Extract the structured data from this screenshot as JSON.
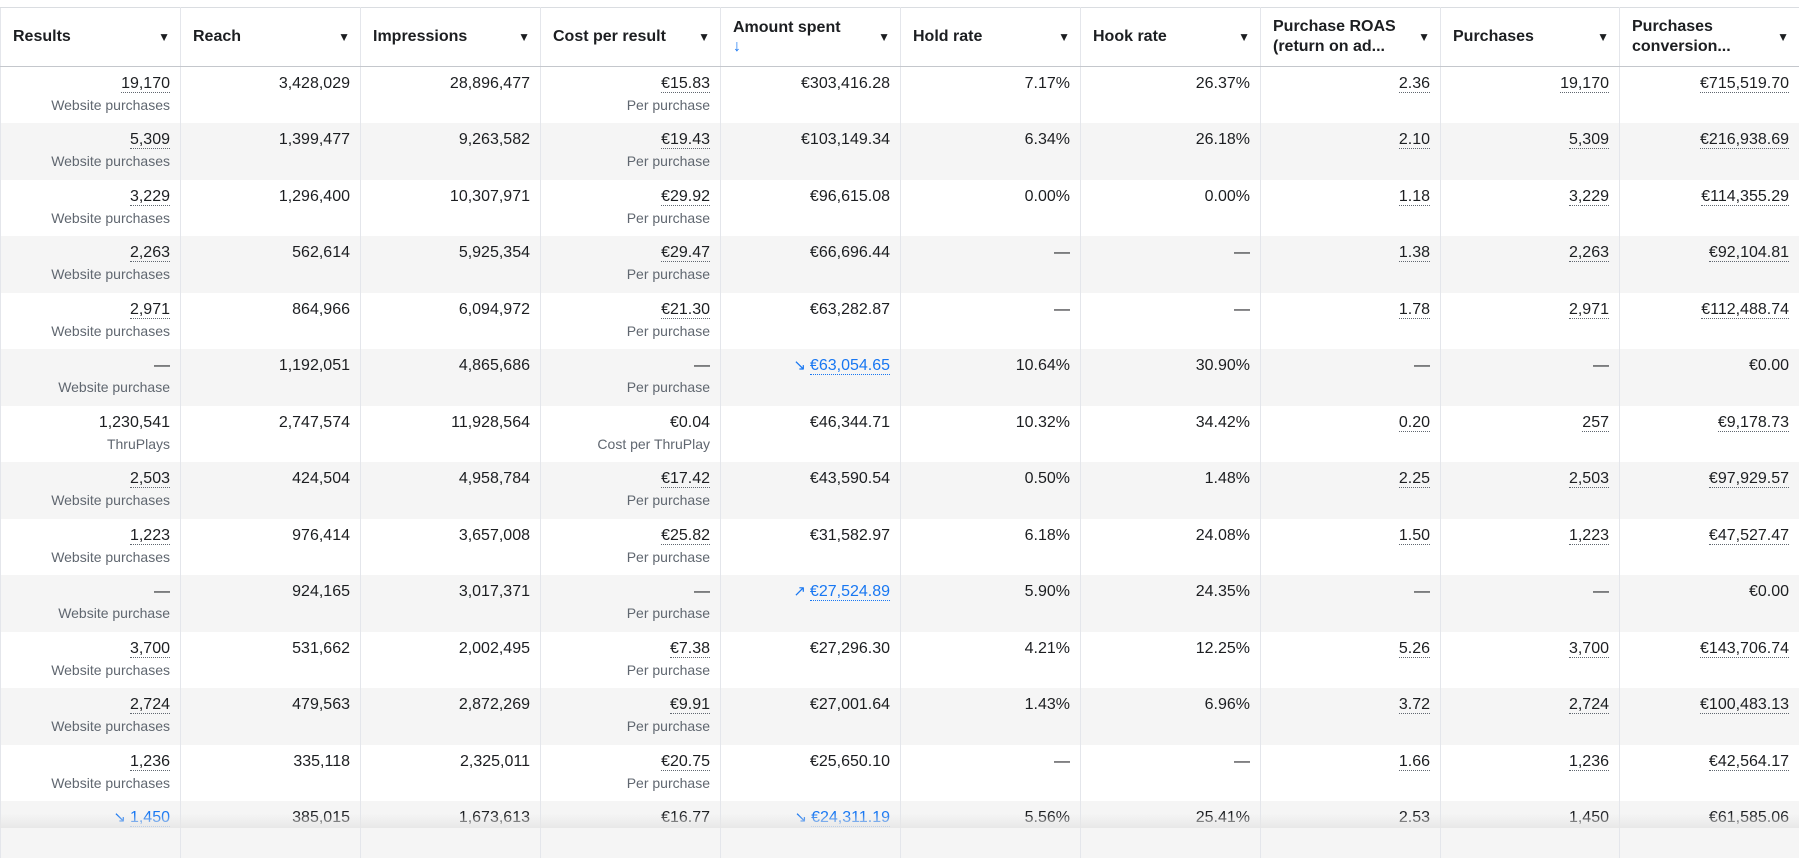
{
  "columns": [
    {
      "label": "Results",
      "sorted": ""
    },
    {
      "label": "Reach",
      "sorted": ""
    },
    {
      "label": "Impressions",
      "sorted": ""
    },
    {
      "label": "Cost per result",
      "sorted": ""
    },
    {
      "label": "Amount spent",
      "sorted": "↓"
    },
    {
      "label": "Hold rate",
      "sorted": ""
    },
    {
      "label": "Hook rate",
      "sorted": ""
    },
    {
      "label": "Purchase ROAS (return on ad...",
      "sorted": ""
    },
    {
      "label": "Purchases",
      "sorted": ""
    },
    {
      "label": "Purchases conversion...",
      "sorted": ""
    }
  ],
  "rows": [
    {
      "results": {
        "value": "19,170",
        "sub": "Website purchases",
        "dotted": true,
        "trend": ""
      },
      "reach": "3,428,029",
      "impressions": "28,896,477",
      "cpr": {
        "value": "€15.83",
        "sub": "Per purchase",
        "dotted": true
      },
      "spent": {
        "value": "€303,416.28",
        "trend": ""
      },
      "hold": "7.17%",
      "hook": "26.37%",
      "roas": {
        "value": "2.36",
        "dotted": true
      },
      "purchases": {
        "value": "19,170",
        "dotted": true
      },
      "conv": {
        "value": "€715,519.70",
        "dotted": true
      }
    },
    {
      "results": {
        "value": "5,309",
        "sub": "Website purchases",
        "dotted": true,
        "trend": ""
      },
      "reach": "1,399,477",
      "impressions": "9,263,582",
      "cpr": {
        "value": "€19.43",
        "sub": "Per purchase",
        "dotted": true
      },
      "spent": {
        "value": "€103,149.34",
        "trend": ""
      },
      "hold": "6.34%",
      "hook": "26.18%",
      "roas": {
        "value": "2.10",
        "dotted": true
      },
      "purchases": {
        "value": "5,309",
        "dotted": true
      },
      "conv": {
        "value": "€216,938.69",
        "dotted": true
      }
    },
    {
      "results": {
        "value": "3,229",
        "sub": "Website purchases",
        "dotted": true,
        "trend": ""
      },
      "reach": "1,296,400",
      "impressions": "10,307,971",
      "cpr": {
        "value": "€29.92",
        "sub": "Per purchase",
        "dotted": true
      },
      "spent": {
        "value": "€96,615.08",
        "trend": ""
      },
      "hold": "0.00%",
      "hook": "0.00%",
      "roas": {
        "value": "1.18",
        "dotted": true
      },
      "purchases": {
        "value": "3,229",
        "dotted": true
      },
      "conv": {
        "value": "€114,355.29",
        "dotted": true
      }
    },
    {
      "results": {
        "value": "2,263",
        "sub": "Website purchases",
        "dotted": true,
        "trend": ""
      },
      "reach": "562,614",
      "impressions": "5,925,354",
      "cpr": {
        "value": "€29.47",
        "sub": "Per purchase",
        "dotted": true
      },
      "spent": {
        "value": "€66,696.44",
        "trend": ""
      },
      "hold": "—",
      "hook": "—",
      "roas": {
        "value": "1.38",
        "dotted": true
      },
      "purchases": {
        "value": "2,263",
        "dotted": true
      },
      "conv": {
        "value": "€92,104.81",
        "dotted": true
      }
    },
    {
      "results": {
        "value": "2,971",
        "sub": "Website purchases",
        "dotted": true,
        "trend": ""
      },
      "reach": "864,966",
      "impressions": "6,094,972",
      "cpr": {
        "value": "€21.30",
        "sub": "Per purchase",
        "dotted": true
      },
      "spent": {
        "value": "€63,282.87",
        "trend": ""
      },
      "hold": "—",
      "hook": "—",
      "roas": {
        "value": "1.78",
        "dotted": true
      },
      "purchases": {
        "value": "2,971",
        "dotted": true
      },
      "conv": {
        "value": "€112,488.74",
        "dotted": true
      }
    },
    {
      "results": {
        "value": "—",
        "sub": "Website purchase",
        "dotted": false,
        "trend": ""
      },
      "reach": "1,192,051",
      "impressions": "4,865,686",
      "cpr": {
        "value": "—",
        "sub": "Per purchase",
        "dotted": false
      },
      "spent": {
        "value": "€63,054.65",
        "trend": "↘"
      },
      "hold": "10.64%",
      "hook": "30.90%",
      "roas": {
        "value": "—",
        "dotted": false
      },
      "purchases": {
        "value": "—",
        "dotted": false
      },
      "conv": {
        "value": "€0.00",
        "dotted": false
      }
    },
    {
      "results": {
        "value": "1,230,541",
        "sub": "ThruPlays",
        "dotted": false,
        "trend": ""
      },
      "reach": "2,747,574",
      "impressions": "11,928,564",
      "cpr": {
        "value": "€0.04",
        "sub": "Cost per ThruPlay",
        "dotted": false
      },
      "spent": {
        "value": "€46,344.71",
        "trend": ""
      },
      "hold": "10.32%",
      "hook": "34.42%",
      "roas": {
        "value": "0.20",
        "dotted": true
      },
      "purchases": {
        "value": "257",
        "dotted": true
      },
      "conv": {
        "value": "€9,178.73",
        "dotted": true
      }
    },
    {
      "results": {
        "value": "2,503",
        "sub": "Website purchases",
        "dotted": true,
        "trend": ""
      },
      "reach": "424,504",
      "impressions": "4,958,784",
      "cpr": {
        "value": "€17.42",
        "sub": "Per purchase",
        "dotted": true
      },
      "spent": {
        "value": "€43,590.54",
        "trend": ""
      },
      "hold": "0.50%",
      "hook": "1.48%",
      "roas": {
        "value": "2.25",
        "dotted": true
      },
      "purchases": {
        "value": "2,503",
        "dotted": true
      },
      "conv": {
        "value": "€97,929.57",
        "dotted": true
      }
    },
    {
      "results": {
        "value": "1,223",
        "sub": "Website purchases",
        "dotted": true,
        "trend": ""
      },
      "reach": "976,414",
      "impressions": "3,657,008",
      "cpr": {
        "value": "€25.82",
        "sub": "Per purchase",
        "dotted": true
      },
      "spent": {
        "value": "€31,582.97",
        "trend": ""
      },
      "hold": "6.18%",
      "hook": "24.08%",
      "roas": {
        "value": "1.50",
        "dotted": true
      },
      "purchases": {
        "value": "1,223",
        "dotted": true
      },
      "conv": {
        "value": "€47,527.47",
        "dotted": true
      }
    },
    {
      "results": {
        "value": "—",
        "sub": "Website purchase",
        "dotted": false,
        "trend": ""
      },
      "reach": "924,165",
      "impressions": "3,017,371",
      "cpr": {
        "value": "—",
        "sub": "Per purchase",
        "dotted": false
      },
      "spent": {
        "value": "€27,524.89",
        "trend": "↗"
      },
      "hold": "5.90%",
      "hook": "24.35%",
      "roas": {
        "value": "—",
        "dotted": false
      },
      "purchases": {
        "value": "—",
        "dotted": false
      },
      "conv": {
        "value": "€0.00",
        "dotted": false
      }
    },
    {
      "results": {
        "value": "3,700",
        "sub": "Website purchases",
        "dotted": true,
        "trend": ""
      },
      "reach": "531,662",
      "impressions": "2,002,495",
      "cpr": {
        "value": "€7.38",
        "sub": "Per purchase",
        "dotted": true
      },
      "spent": {
        "value": "€27,296.30",
        "trend": ""
      },
      "hold": "4.21%",
      "hook": "12.25%",
      "roas": {
        "value": "5.26",
        "dotted": true
      },
      "purchases": {
        "value": "3,700",
        "dotted": true
      },
      "conv": {
        "value": "€143,706.74",
        "dotted": true
      }
    },
    {
      "results": {
        "value": "2,724",
        "sub": "Website purchases",
        "dotted": true,
        "trend": ""
      },
      "reach": "479,563",
      "impressions": "2,872,269",
      "cpr": {
        "value": "€9.91",
        "sub": "Per purchase",
        "dotted": true
      },
      "spent": {
        "value": "€27,001.64",
        "trend": ""
      },
      "hold": "1.43%",
      "hook": "6.96%",
      "roas": {
        "value": "3.72",
        "dotted": true
      },
      "purchases": {
        "value": "2,724",
        "dotted": true
      },
      "conv": {
        "value": "€100,483.13",
        "dotted": true
      }
    },
    {
      "results": {
        "value": "1,236",
        "sub": "Website purchases",
        "dotted": true,
        "trend": ""
      },
      "reach": "335,118",
      "impressions": "2,325,011",
      "cpr": {
        "value": "€20.75",
        "sub": "Per purchase",
        "dotted": true
      },
      "spent": {
        "value": "€25,650.10",
        "trend": ""
      },
      "hold": "—",
      "hook": "—",
      "roas": {
        "value": "1.66",
        "dotted": true
      },
      "purchases": {
        "value": "1,236",
        "dotted": true
      },
      "conv": {
        "value": "€42,564.17",
        "dotted": true
      }
    },
    {
      "results": {
        "value": "1,450",
        "sub": "",
        "dotted": false,
        "trend": "↘"
      },
      "reach": "385,015",
      "impressions": "1,673,613",
      "cpr": {
        "value": "€16.77",
        "sub": "",
        "dotted": false
      },
      "spent": {
        "value": "€24,311.19",
        "trend": "↘"
      },
      "hold": "5.56%",
      "hook": "25.41%",
      "roas": {
        "value": "2.53",
        "dotted": false
      },
      "purchases": {
        "value": "1,450",
        "dotted": false
      },
      "conv": {
        "value": "€61,585.06",
        "dotted": false
      }
    }
  ]
}
